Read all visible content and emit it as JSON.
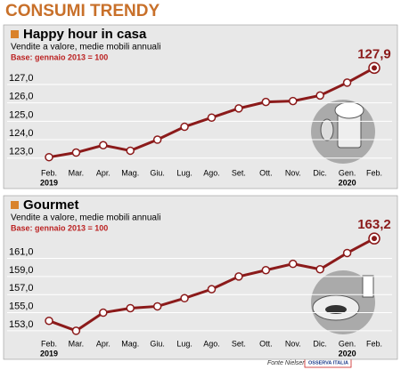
{
  "header": {
    "title": "CONSUMI TRENDY"
  },
  "chart_data": [
    {
      "type": "line",
      "title": "Happy hour in casa",
      "subtitle": "Vendite a valore, medie mobili annuali",
      "note": "Base: gennaio 2013 = 100",
      "categories": [
        "Feb.",
        "Mar.",
        "Apr.",
        "Mag.",
        "Giu.",
        "Lug.",
        "Ago.",
        "Set.",
        "Ott.",
        "Nov.",
        "Dic.",
        "Gen.",
        "Feb."
      ],
      "years": [
        "2019",
        null,
        null,
        null,
        null,
        null,
        null,
        null,
        null,
        null,
        null,
        "2020",
        null
      ],
      "series": [
        {
          "name": "Happy hour in casa",
          "color": "#8b1a1a",
          "values": [
            123.05,
            123.3,
            123.7,
            123.4,
            124.0,
            124.7,
            125.2,
            125.7,
            126.05,
            126.1,
            126.4,
            127.1,
            127.9
          ],
          "value_labels": [
            null,
            null,
            null,
            null,
            null,
            null,
            null,
            null,
            null,
            null,
            null,
            null,
            "127,9"
          ]
        }
      ],
      "ylim": [
        122.6,
        128.4
      ],
      "yticks": [
        {
          "value": 123,
          "label": "123,0"
        },
        {
          "value": 124,
          "label": "124,0"
        },
        {
          "value": 125,
          "label": "125,0"
        },
        {
          "value": 126,
          "label": "126,0"
        },
        {
          "value": 127,
          "label": "127,0"
        }
      ],
      "grid": true
    },
    {
      "type": "line",
      "title": "Gourmet",
      "subtitle": "Vendite a valore, medie mobili annuali",
      "note": "Base: gennaio 2013 = 100",
      "categories": [
        "Feb.",
        "Mar.",
        "Apr.",
        "Mag.",
        "Giu.",
        "Lug.",
        "Ago.",
        "Set.",
        "Ott.",
        "Nov.",
        "Dic.",
        "Gen.",
        "Feb."
      ],
      "years": [
        "2019",
        null,
        null,
        null,
        null,
        null,
        null,
        null,
        null,
        null,
        null,
        "2020",
        null
      ],
      "series": [
        {
          "name": "Gourmet",
          "color": "#8b1a1a",
          "values": [
            154.1,
            153.0,
            155.0,
            155.5,
            155.7,
            156.6,
            157.6,
            159.0,
            159.7,
            160.4,
            159.8,
            161.6,
            163.2
          ],
          "value_labels": [
            null,
            null,
            null,
            null,
            null,
            null,
            null,
            null,
            null,
            null,
            null,
            null,
            "163,2"
          ]
        }
      ],
      "ylim": [
        152.4,
        164.2
      ],
      "yticks": [
        {
          "value": 153,
          "label": "153,0"
        },
        {
          "value": 155,
          "label": "155,0"
        },
        {
          "value": 157,
          "label": "157,0"
        },
        {
          "value": 159,
          "label": "159,0"
        },
        {
          "value": 161,
          "label": "161,0"
        }
      ],
      "grid": true
    }
  ],
  "footer": {
    "source": "Fonte Nielsen",
    "logo": "OSSERVA ITALIA"
  }
}
